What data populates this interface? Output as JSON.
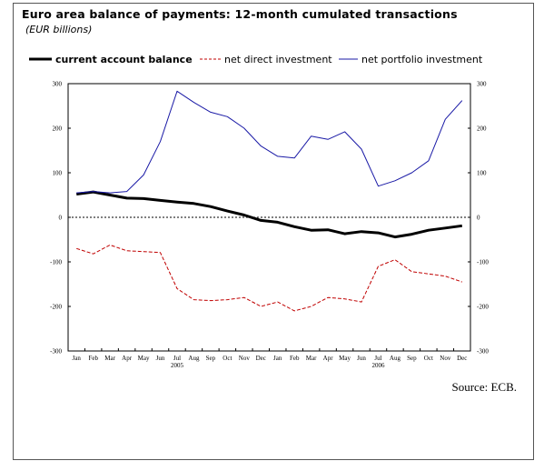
{
  "title": "Euro area balance of payments: 12-month cumulated transactions",
  "subtitle": "(EUR billions)",
  "source": "Source: ECB.",
  "colors": {
    "current_account": "#000000",
    "direct_investment": "#c00000",
    "portfolio_investment": "#1a1aa6",
    "zero_line": "#000000"
  },
  "chart_data": {
    "type": "line",
    "categories": [
      "Jan",
      "Feb",
      "Mar",
      "Apr",
      "May",
      "Jun",
      "Jul",
      "Aug",
      "Sep",
      "Oct",
      "Nov",
      "Dec",
      "Jan",
      "Feb",
      "Mar",
      "Apr",
      "May",
      "Jun",
      "Jul",
      "Aug",
      "Sep",
      "Oct",
      "Nov",
      "Dec"
    ],
    "year_labels": [
      {
        "label": "2005",
        "index": 6
      },
      {
        "label": "2006",
        "index": 18
      }
    ],
    "ylim": [
      -300,
      300
    ],
    "yticks": [
      -300,
      -200,
      -100,
      0,
      100,
      200,
      300
    ],
    "xlabel": "",
    "ylabel": "",
    "legend_position": "top",
    "series": [
      {
        "name": "current account balance",
        "style": "solid-thick",
        "values": [
          52,
          57,
          50,
          43,
          42,
          38,
          34,
          31,
          24,
          14,
          5,
          -7,
          -11,
          -21,
          -29,
          -28,
          -37,
          -32,
          -35,
          -44,
          -38,
          -29,
          -24,
          -19
        ]
      },
      {
        "name": "net direct investment",
        "style": "dashed",
        "values": [
          -70,
          -82,
          -62,
          -75,
          -77,
          -79,
          -160,
          -185,
          -187,
          -185,
          -180,
          -200,
          -190,
          -210,
          -200,
          -180,
          -183,
          -190,
          -110,
          -95,
          -122,
          -127,
          -132,
          -145
        ]
      },
      {
        "name": "net portfolio investment",
        "style": "solid-thin",
        "values": [
          55,
          58,
          55,
          58,
          95,
          170,
          283,
          258,
          236,
          226,
          200,
          160,
          137,
          133,
          182,
          175,
          192,
          153,
          70,
          82,
          100,
          127,
          220,
          262
        ]
      }
    ]
  }
}
